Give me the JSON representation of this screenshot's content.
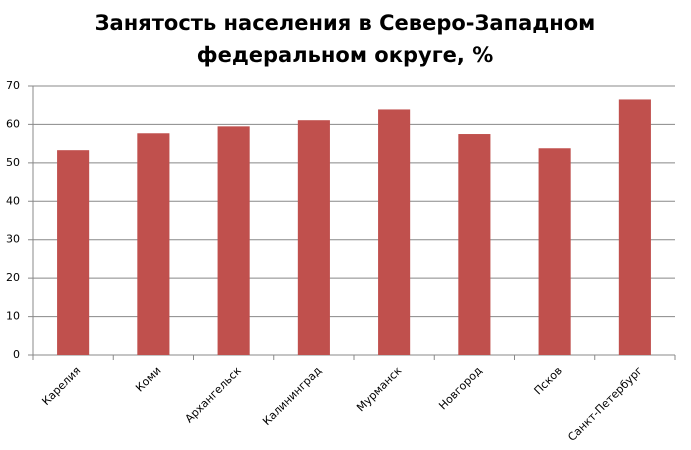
{
  "chart_data": {
    "type": "bar",
    "title": [
      "Занятость населения в Северо-Западном",
      "федеральном округе, %"
    ],
    "categories": [
      "Карелия",
      "Коми",
      "Архангельск",
      "Калининград",
      "Мурманск",
      "Новгород",
      "Псков",
      "Санкт-Петербург"
    ],
    "values": [
      53.3,
      57.7,
      59.5,
      61.1,
      63.9,
      57.5,
      53.8,
      66.5
    ],
    "color": "#c0504d",
    "ylim": [
      0,
      70
    ],
    "yticks": [
      0,
      10,
      20,
      30,
      40,
      50,
      60,
      70
    ],
    "grid": true
  }
}
